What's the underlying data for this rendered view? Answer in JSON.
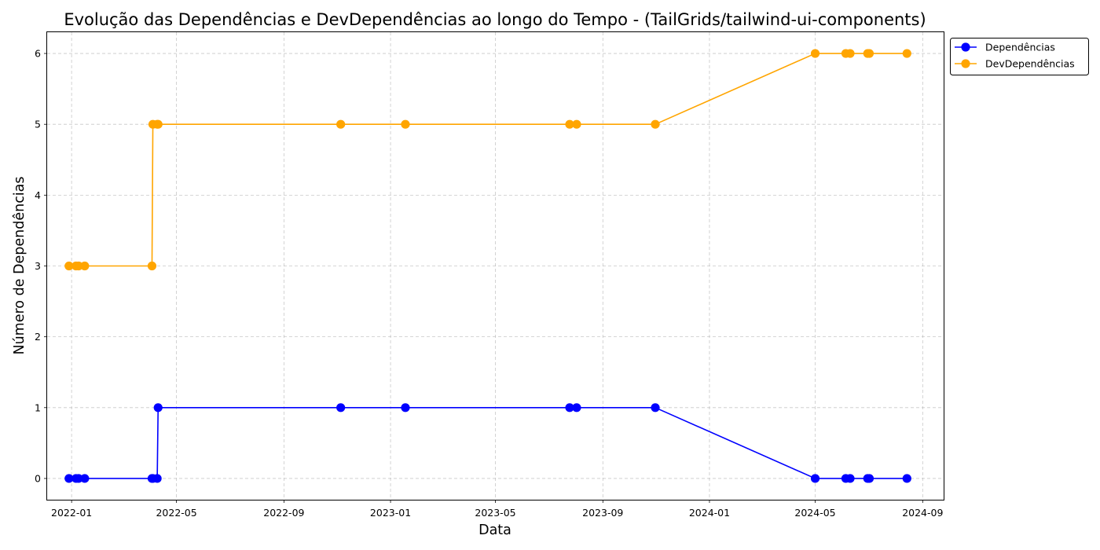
{
  "chart_data": {
    "type": "line",
    "title": "Evolução das Dependências e DevDependências ao longo do Tempo - (TailGrids/tailwind-ui-components)",
    "xlabel": "Data",
    "ylabel": "Número de Dependências",
    "x_ticks": [
      "2022-01",
      "2022-05",
      "2022-09",
      "2023-01",
      "2023-05",
      "2023-09",
      "2024-01",
      "2024-05",
      "2024-09"
    ],
    "y_ticks": [
      0,
      1,
      2,
      3,
      4,
      5,
      6
    ],
    "xlim": [
      "2021-12-04",
      "2024-09-25"
    ],
    "ylim": [
      -0.3,
      6.3
    ],
    "grid": true,
    "legend_position": "outside upper right",
    "x": [
      "2021-12-29",
      "2022-01-06",
      "2022-01-09",
      "2022-01-16",
      "2022-04-03",
      "2022-04-04",
      "2022-04-09",
      "2022-04-10",
      "2022-11-05",
      "2023-01-18",
      "2023-07-25",
      "2023-08-02",
      "2023-10-31",
      "2024-05-01",
      "2024-06-05",
      "2024-06-10",
      "2024-06-30",
      "2024-07-02",
      "2024-08-14"
    ],
    "series": [
      {
        "name": "Dependências",
        "color": "#0000ff",
        "values": [
          0,
          0,
          0,
          0,
          0,
          0,
          0,
          1,
          1,
          1,
          1,
          1,
          1,
          0,
          0,
          0,
          0,
          0,
          0
        ]
      },
      {
        "name": "DevDependências",
        "color": "#ffa500",
        "values": [
          3,
          3,
          3,
          3,
          3,
          5,
          5,
          5,
          5,
          5,
          5,
          5,
          5,
          6,
          6,
          6,
          6,
          6,
          6
        ]
      }
    ]
  }
}
